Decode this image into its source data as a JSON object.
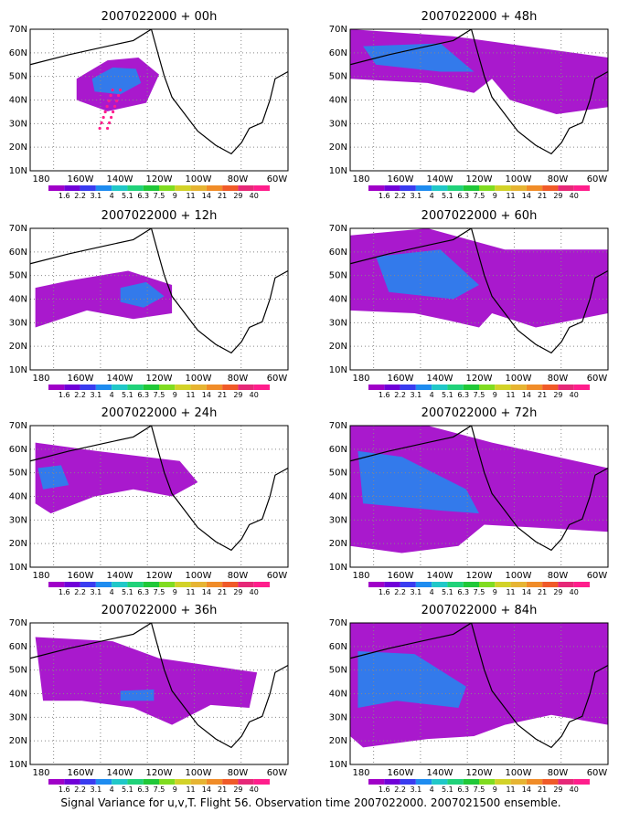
{
  "caption": "Signal Variance for u,v,T. Flight 56. Observation time 2007022000. 2007021500 ensemble.",
  "colorbar": {
    "labels": [
      "1.6",
      "2.2",
      "3.1",
      "4",
      "5.1",
      "6.3",
      "7.5",
      "9",
      "11",
      "14",
      "21",
      "29",
      "40"
    ],
    "colors": [
      "#a000c8",
      "#7000d8",
      "#3a3cf0",
      "#1e8cf0",
      "#20c8c8",
      "#20d27a",
      "#20c838",
      "#80dc20",
      "#d2d228",
      "#e6b432",
      "#f08c28",
      "#f05a28",
      "#e62878",
      "#ff1e8c"
    ]
  },
  "map": {
    "lat_ticks": [
      "10N",
      "20N",
      "30N",
      "40N",
      "50N",
      "60N",
      "70N"
    ],
    "lon_ticks": [
      "180",
      "160W",
      "140W",
      "120W",
      "100W",
      "80W",
      "60W"
    ]
  },
  "panels": [
    {
      "title": "2007022000 + 00h",
      "lead_hours": 0
    },
    {
      "title": "2007022000 + 48h",
      "lead_hours": 48
    },
    {
      "title": "2007022000 + 12h",
      "lead_hours": 12
    },
    {
      "title": "2007022000 + 60h",
      "lead_hours": 60
    },
    {
      "title": "2007022000 + 24h",
      "lead_hours": 24
    },
    {
      "title": "2007022000 + 72h",
      "lead_hours": 72
    },
    {
      "title": "2007022000 + 36h",
      "lead_hours": 36
    },
    {
      "title": "2007022000 + 84h",
      "lead_hours": 84
    }
  ]
}
